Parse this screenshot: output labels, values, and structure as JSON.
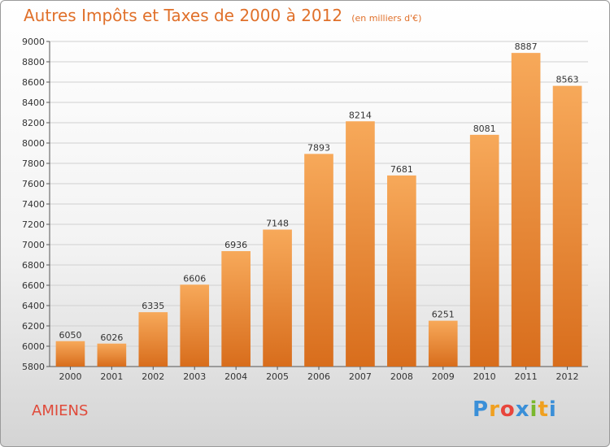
{
  "chart_data": {
    "type": "bar",
    "title": "Autres Impôts et Taxes de 2000 à 2012",
    "unit_label": "(en milliers d'€)",
    "categories": [
      "2000",
      "2001",
      "2002",
      "2003",
      "2004",
      "2005",
      "2006",
      "2007",
      "2008",
      "2009",
      "2010",
      "2011",
      "2012"
    ],
    "values": [
      6050,
      6026,
      6335,
      6606,
      6936,
      7148,
      7893,
      8214,
      7681,
      6251,
      8081,
      8887,
      8563
    ],
    "ylim": [
      5800,
      9000
    ],
    "yticks": [
      5800,
      6000,
      6200,
      6400,
      6600,
      6800,
      7000,
      7200,
      7400,
      7600,
      7800,
      8000,
      8200,
      8400,
      8600,
      8800,
      9000
    ],
    "grid": true,
    "bar_color_top": "#f7a95a",
    "bar_color_bottom": "#d86d1c"
  },
  "footer": {
    "city": "AMIENS",
    "logo_letters": [
      {
        "ch": "P",
        "color": "#3a8fd8"
      },
      {
        "ch": "r",
        "color": "#f0a020"
      },
      {
        "ch": "o",
        "color": "#e8453c"
      },
      {
        "ch": "x",
        "color": "#3a8fd8"
      },
      {
        "ch": "i",
        "color": "#7ab82e"
      },
      {
        "ch": "t",
        "color": "#f0a020"
      },
      {
        "ch": "i",
        "color": "#3a8fd8"
      }
    ]
  }
}
